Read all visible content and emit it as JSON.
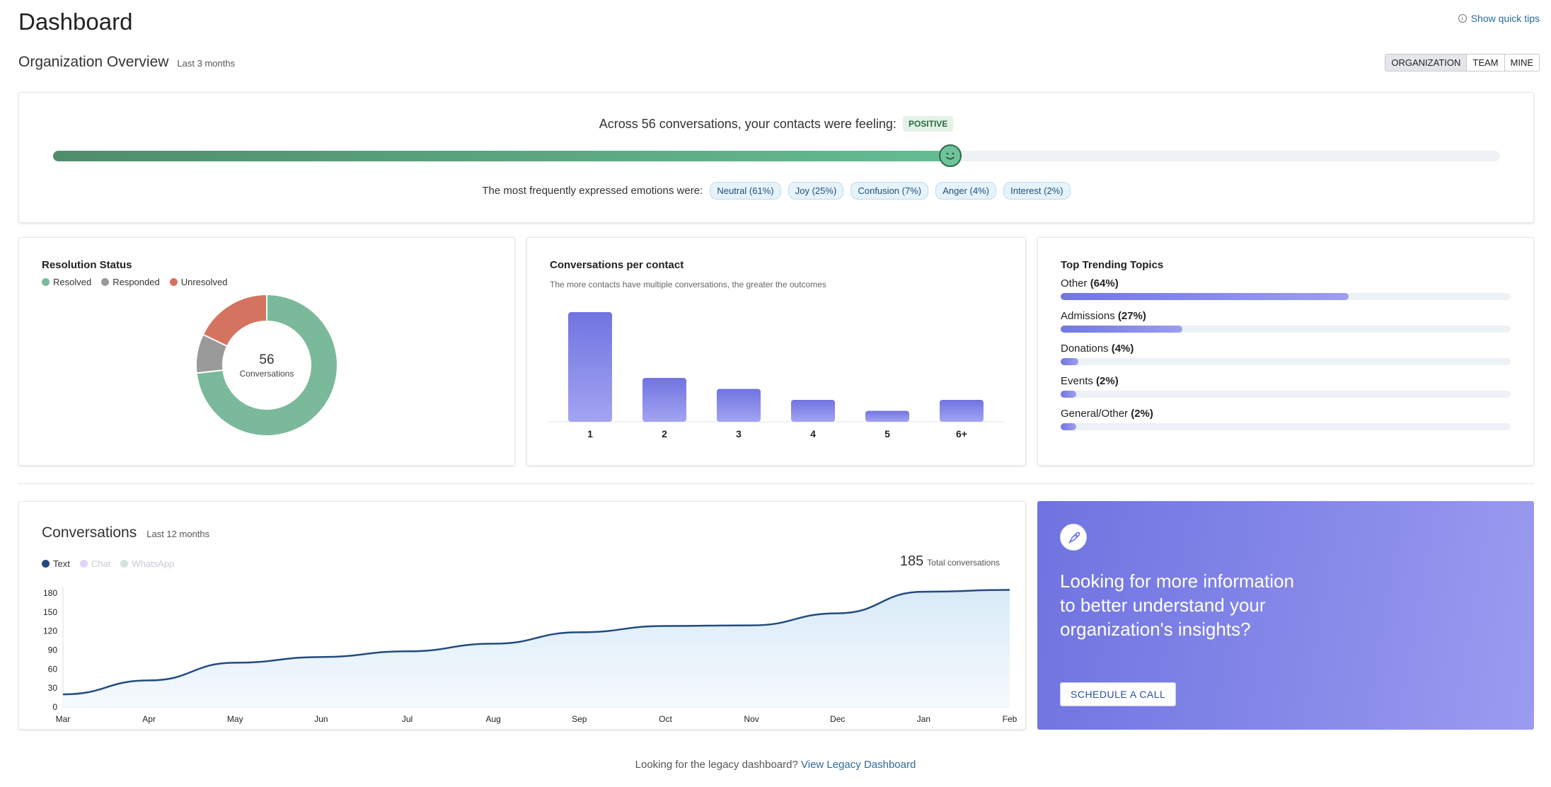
{
  "header": {
    "title": "Dashboard",
    "tips_label": "Show quick tips"
  },
  "overview": {
    "title": "Organization Overview",
    "period": "Last 3 months",
    "tabs": [
      "ORGANIZATION",
      "TEAM",
      "MINE"
    ],
    "active_tab": "ORGANIZATION"
  },
  "sentiment": {
    "prefix": "Across 56 conversations, your contacts were feeling:",
    "badge": "POSITIVE",
    "level": 0.62,
    "emotions_label": "The most frequently expressed emotions were:",
    "emotions": [
      "Neutral (61%)",
      "Joy (25%)",
      "Confusion (7%)",
      "Anger (4%)",
      "Interest (2%)"
    ]
  },
  "resolution": {
    "title": "Resolution Status",
    "legend": [
      {
        "label": "Resolved",
        "color": "#7bb99b"
      },
      {
        "label": "Responded",
        "color": "#9a9a9a"
      },
      {
        "label": "Unresolved",
        "color": "#d4735f"
      }
    ],
    "center_value": "56",
    "center_label": "Conversations",
    "values": [
      41,
      5,
      10
    ]
  },
  "per_contact": {
    "title": "Conversations per contact",
    "subtitle": "The more contacts have multiple conversations, the greater the outcomes"
  },
  "topics": {
    "title": "Top Trending Topics",
    "items": [
      {
        "name": "Other",
        "pct": "(64%)",
        "value": 0.64
      },
      {
        "name": "Admissions",
        "pct": "(27%)",
        "value": 0.27
      },
      {
        "name": "Donations",
        "pct": "(4%)",
        "value": 0.04
      },
      {
        "name": "Events",
        "pct": "(2%)",
        "value": 0.02
      },
      {
        "name": "General/Other",
        "pct": "(2%)",
        "value": 0.02
      }
    ]
  },
  "conversations": {
    "title": "Conversations",
    "period": "Last 12 months",
    "legend": [
      "Text",
      "Chat",
      "WhatsApp"
    ],
    "total": "185",
    "total_label": "Total conversations"
  },
  "promo": {
    "text": "Looking for more information to better understand your organization's insights?",
    "button": "SCHEDULE A CALL"
  },
  "footer": {
    "text": "Looking for the legacy dashboard?",
    "link": "View Legacy Dashboard"
  },
  "chart_data": [
    {
      "type": "bar",
      "categories": [
        "1",
        "2",
        "3",
        "4",
        "5",
        "6+"
      ],
      "values": [
        100,
        40,
        30,
        20,
        10,
        20
      ],
      "ylim": [
        0,
        100
      ]
    },
    {
      "type": "area",
      "x": [
        "Mar",
        "Apr",
        "May",
        "Jun",
        "Jul",
        "Aug",
        "Sep",
        "Oct",
        "Nov",
        "Dec",
        "Jan",
        "Feb"
      ],
      "series": [
        {
          "name": "Text",
          "values": [
            20,
            42,
            70,
            79,
            88,
            100,
            118,
            128,
            129,
            148,
            182,
            185
          ]
        }
      ],
      "yticks": [
        0,
        30,
        60,
        90,
        120,
        150,
        180
      ],
      "ylim": [
        0,
        190
      ]
    }
  ]
}
